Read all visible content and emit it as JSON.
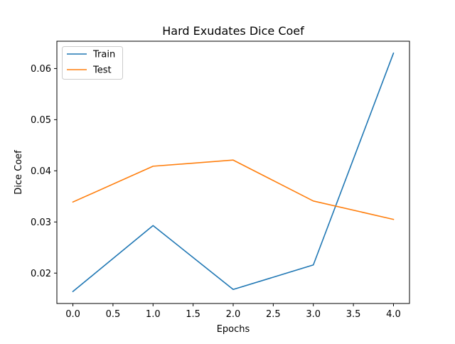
{
  "chart_data": {
    "type": "line",
    "title": "Hard Exudates Dice Coef",
    "xlabel": "Epochs",
    "ylabel": "Dice Coef",
    "x": [
      0,
      1,
      2,
      3,
      4
    ],
    "series": [
      {
        "name": "Train",
        "color": "#1f77b4",
        "values": [
          0.0164,
          0.0293,
          0.0168,
          0.0216,
          0.063
        ]
      },
      {
        "name": "Test",
        "color": "#ff7f0e",
        "values": [
          0.0339,
          0.0409,
          0.0421,
          0.0341,
          0.0305
        ]
      }
    ],
    "xlim": [
      -0.2,
      4.2
    ],
    "ylim": [
      0.01406,
      0.06534
    ],
    "xticks": [
      0.0,
      0.5,
      1.0,
      1.5,
      2.0,
      2.5,
      3.0,
      3.5,
      4.0
    ],
    "xtick_labels": [
      "0.0",
      "0.5",
      "1.0",
      "1.5",
      "2.0",
      "2.5",
      "3.0",
      "3.5",
      "4.0"
    ],
    "yticks": [
      0.02,
      0.03,
      0.04,
      0.05,
      0.06
    ],
    "ytick_labels": [
      "0.02",
      "0.03",
      "0.04",
      "0.05",
      "0.06"
    ],
    "legend_position": "upper-left",
    "grid": false
  }
}
